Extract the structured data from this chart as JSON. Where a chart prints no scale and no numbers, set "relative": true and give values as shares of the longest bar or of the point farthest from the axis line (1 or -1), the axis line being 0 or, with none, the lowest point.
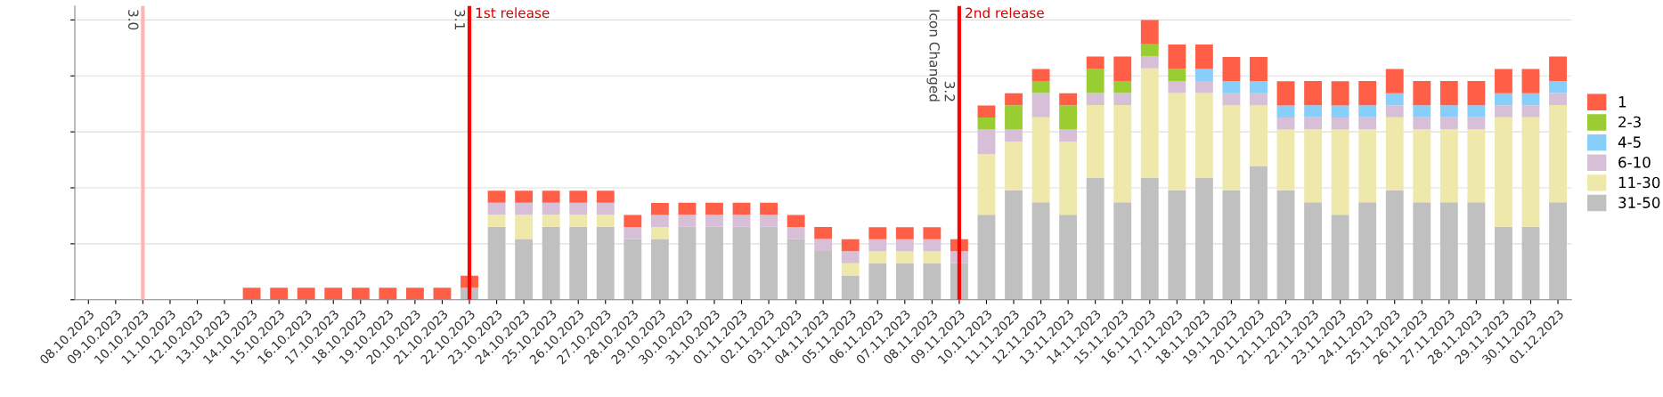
{
  "chart_data": {
    "type": "bar",
    "stacked": true,
    "relative": true,
    "grid": "y",
    "legend": "right",
    "categories": [
      "08.10.2023",
      "09.10.2023",
      "10.10.2023",
      "11.10.2023",
      "12.10.2023",
      "13.10.2023",
      "14.10.2023",
      "15.10.2023",
      "16.10.2023",
      "17.10.2023",
      "18.10.2023",
      "19.10.2023",
      "20.10.2023",
      "21.10.2023",
      "22.10.2023",
      "23.10.2023",
      "24.10.2023",
      "25.10.2023",
      "26.10.2023",
      "27.10.2023",
      "28.10.2023",
      "29.10.2023",
      "30.10.2023",
      "31.10.2023",
      "01.11.2023",
      "02.11.2023",
      "03.11.2023",
      "04.11.2023",
      "05.11.2023",
      "06.11.2023",
      "07.11.2023",
      "08.11.2023",
      "09.11.2023",
      "10.11.2023",
      "11.11.2023",
      "12.11.2023",
      "13.11.2023",
      "14.11.2023",
      "15.11.2023",
      "16.11.2023",
      "17.11.2023",
      "18.11.2023",
      "19.11.2023",
      "20.11.2023",
      "21.11.2023",
      "22.11.2023",
      "23.11.2023",
      "24.11.2023",
      "25.11.2023",
      "26.11.2023",
      "27.11.2023",
      "28.11.2023",
      "29.11.2023",
      "30.11.2023",
      "01.12.2023"
    ],
    "series": [
      {
        "name": "31-50",
        "color": "#c0c0c0",
        "values": [
          0,
          0,
          0,
          0,
          0,
          0,
          0,
          0,
          0,
          0,
          0,
          0,
          0,
          0,
          0.043,
          0.261,
          0.217,
          0.261,
          0.261,
          0.261,
          0.217,
          0.217,
          0.261,
          0.261,
          0.261,
          0.261,
          0.217,
          0.174,
          0.087,
          0.13,
          0.13,
          0.13,
          0.13,
          0.304,
          0.391,
          0.348,
          0.304,
          0.435,
          0.348,
          0.436,
          0.391,
          0.435,
          0.391,
          0.478,
          0.391,
          0.348,
          0.304,
          0.348,
          0.391,
          0.348,
          0.348,
          0.348,
          0.261,
          0.261,
          0.348
        ]
      },
      {
        "name": "11-30",
        "color": "#eee8aa",
        "values": [
          0,
          0,
          0,
          0,
          0,
          0,
          0,
          0,
          0,
          0,
          0,
          0,
          0,
          0,
          0,
          0.043,
          0.087,
          0.043,
          0.043,
          0.043,
          0,
          0.043,
          0,
          0,
          0,
          0,
          0,
          0,
          0.043,
          0.043,
          0.043,
          0.043,
          0,
          0.217,
          0.174,
          0.304,
          0.261,
          0.261,
          0.348,
          0.391,
          0.348,
          0.304,
          0.304,
          0.217,
          0.217,
          0.261,
          0.304,
          0.261,
          0.261,
          0.261,
          0.261,
          0.261,
          0.391,
          0.391,
          0.348
        ]
      },
      {
        "name": "6-10",
        "color": "#d8bfd8",
        "values": [
          0,
          0,
          0,
          0,
          0,
          0,
          0,
          0,
          0,
          0,
          0,
          0,
          0,
          0,
          0,
          0.043,
          0.043,
          0.043,
          0.043,
          0.043,
          0.043,
          0.043,
          0.043,
          0.043,
          0.043,
          0.043,
          0.043,
          0.043,
          0.043,
          0.043,
          0.043,
          0.043,
          0.043,
          0.087,
          0.043,
          0.087,
          0.043,
          0.043,
          0.043,
          0.043,
          0.043,
          0.043,
          0.043,
          0.043,
          0.043,
          0.043,
          0.043,
          0.043,
          0.043,
          0.043,
          0.043,
          0.043,
          0.043,
          0.043,
          0.043
        ]
      },
      {
        "name": "4-5",
        "color": "#87cefa",
        "values": [
          0,
          0,
          0,
          0,
          0,
          0,
          0,
          0,
          0,
          0,
          0,
          0,
          0,
          0,
          0,
          0,
          0,
          0,
          0,
          0,
          0,
          0,
          0,
          0,
          0,
          0,
          0,
          0,
          0,
          0,
          0,
          0,
          0,
          0,
          0,
          0,
          0,
          0,
          0,
          0,
          0,
          0.043,
          0.043,
          0.043,
          0.043,
          0.043,
          0.043,
          0.043,
          0.043,
          0.043,
          0.043,
          0.043,
          0.043,
          0.043,
          0.043
        ]
      },
      {
        "name": "2-3",
        "color": "#9acd32",
        "values": [
          0,
          0,
          0,
          0,
          0,
          0,
          0,
          0,
          0,
          0,
          0,
          0,
          0,
          0,
          0,
          0,
          0,
          0,
          0,
          0,
          0,
          0,
          0,
          0,
          0,
          0,
          0,
          0,
          0,
          0,
          0,
          0,
          0,
          0.043,
          0.087,
          0.043,
          0.087,
          0.087,
          0.043,
          0.043,
          0.043,
          0,
          0,
          0,
          0,
          0,
          0,
          0,
          0,
          0,
          0,
          0,
          0,
          0,
          0
        ]
      },
      {
        "name": "1",
        "color": "#ff5f46",
        "values": [
          0,
          0,
          0,
          0,
          0,
          0,
          0.043,
          0.043,
          0.043,
          0.043,
          0.043,
          0.043,
          0.043,
          0.043,
          0.043,
          0.043,
          0.043,
          0.043,
          0.043,
          0.043,
          0.043,
          0.043,
          0.043,
          0.043,
          0.043,
          0.043,
          0.043,
          0.043,
          0.043,
          0.043,
          0.043,
          0.043,
          0.043,
          0.043,
          0.043,
          0.043,
          0.043,
          0.043,
          0.087,
          0.087,
          0.087,
          0.087,
          0.087,
          0.087,
          0.087,
          0.087,
          0.087,
          0.087,
          0.087,
          0.087,
          0.087,
          0.087,
          0.087,
          0.087,
          0.087
        ]
      }
    ],
    "ref_lines": [
      {
        "axis": "x",
        "value": "10.10.2023",
        "label": "3.0",
        "color": "#ffb3b3"
      },
      {
        "axis": "x",
        "value": "22.10.2023",
        "label": "3.1",
        "color": "#ff0000"
      },
      {
        "axis": "x",
        "value": "09.11.2023",
        "label": "3.2\nIcon Changed",
        "color": "#ff0000"
      }
    ],
    "annotations": [
      {
        "text": "1st release",
        "x": "22.10.2023"
      },
      {
        "text": "2nd release",
        "x": "09.11.2023"
      }
    ]
  }
}
